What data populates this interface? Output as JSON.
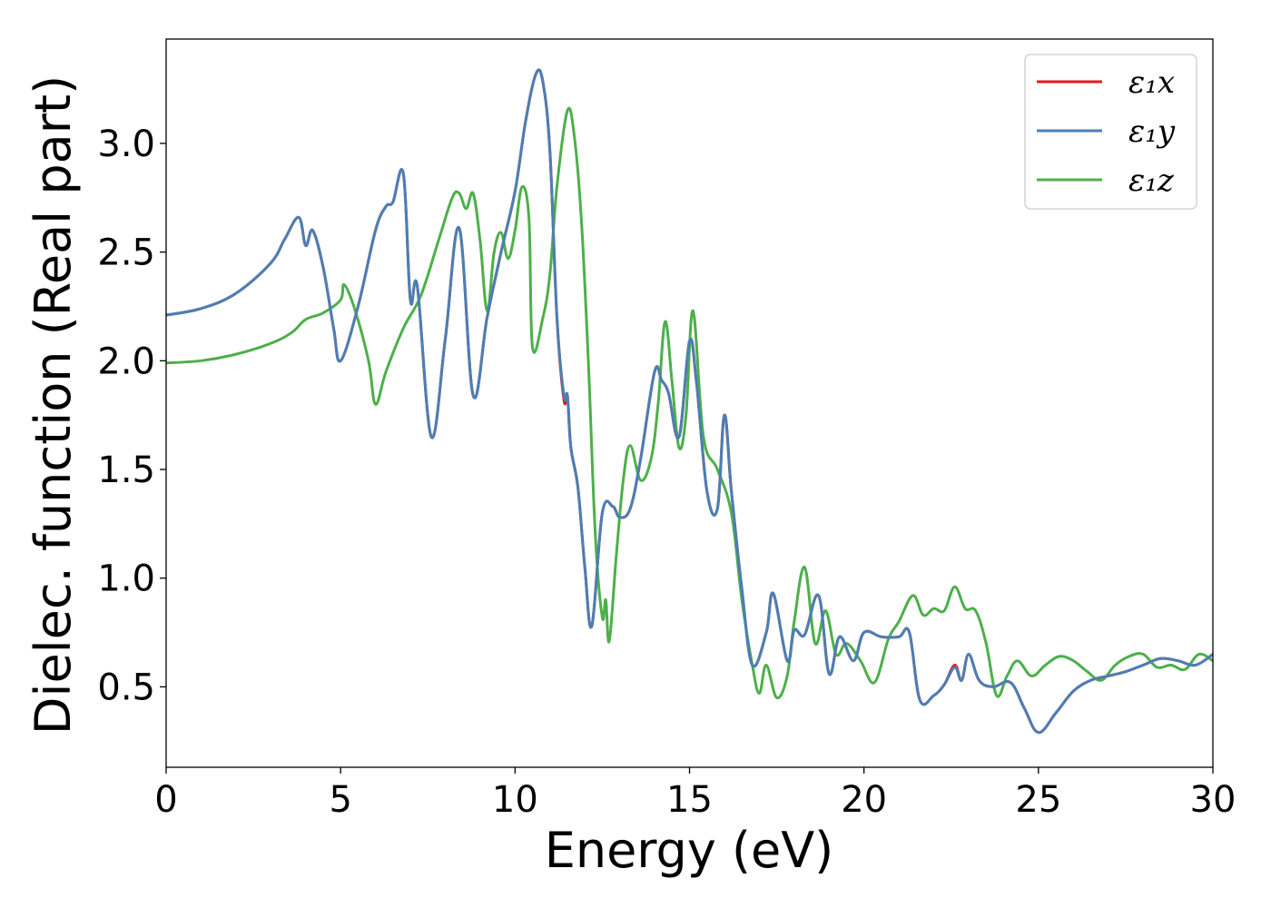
{
  "chart_data": {
    "type": "line",
    "xlabel": "Energy (eV)",
    "ylabel": "Dielec. function (Real part)",
    "xlim": [
      0,
      30
    ],
    "ylim": [
      0.13,
      3.48
    ],
    "xticks": [
      0,
      5,
      10,
      15,
      20,
      25,
      30
    ],
    "xtick_labels": [
      "0",
      "5",
      "10",
      "15",
      "20",
      "25",
      "30"
    ],
    "yticks": [
      0.5,
      1.0,
      1.5,
      2.0,
      2.5,
      3.0
    ],
    "ytick_labels": [
      "0.5",
      "1.0",
      "1.5",
      "2.0",
      "2.5",
      "3.0"
    ],
    "grid": false,
    "legend_position": "top-right",
    "series": [
      {
        "name": "ε₁x",
        "color": "#e41a1c",
        "x": [
          0,
          1,
          2,
          3,
          3.4,
          3.8,
          4.0,
          4.2,
          4.5,
          4.8,
          5.0,
          5.5,
          6.0,
          6.3,
          6.5,
          6.8,
          7.0,
          7.2,
          7.6,
          8.0,
          8.4,
          8.8,
          9.2,
          9.6,
          10.0,
          10.3,
          10.6,
          10.8,
          11.0,
          11.2,
          11.4,
          11.5,
          11.6,
          11.8,
          12.0,
          12.2,
          12.5,
          12.8,
          13.0,
          13.3,
          13.6,
          14.0,
          14.2,
          14.4,
          14.7,
          15.0,
          15.2,
          15.5,
          15.8,
          16.0,
          16.2,
          16.5,
          16.8,
          17.2,
          17.4,
          17.8,
          18.0,
          18.3,
          18.7,
          19.0,
          19.3,
          19.7,
          20.0,
          20.5,
          21.0,
          21.3,
          21.6,
          22.0,
          22.3,
          22.6,
          22.8,
          23.0,
          23.3,
          23.7,
          24.2,
          24.6,
          25.0,
          25.5,
          26.0,
          26.5,
          27.0,
          27.5,
          28.0,
          28.5,
          29.0,
          29.5,
          30.0
        ],
        "y": [
          2.21,
          2.24,
          2.31,
          2.45,
          2.56,
          2.66,
          2.53,
          2.6,
          2.43,
          2.15,
          2.0,
          2.25,
          2.6,
          2.71,
          2.73,
          2.86,
          2.28,
          2.34,
          1.65,
          2.1,
          2.61,
          1.84,
          2.2,
          2.5,
          2.78,
          3.1,
          3.32,
          3.28,
          2.96,
          2.2,
          1.82,
          1.84,
          1.6,
          1.42,
          1.05,
          0.78,
          1.3,
          1.33,
          1.28,
          1.32,
          1.55,
          1.95,
          1.91,
          1.85,
          1.65,
          2.09,
          1.9,
          1.4,
          1.32,
          1.75,
          1.4,
          0.95,
          0.6,
          0.75,
          0.93,
          0.62,
          0.76,
          0.74,
          0.92,
          0.56,
          0.73,
          0.62,
          0.75,
          0.73,
          0.73,
          0.75,
          0.44,
          0.46,
          0.51,
          0.6,
          0.53,
          0.65,
          0.53,
          0.5,
          0.52,
          0.4,
          0.29,
          0.38,
          0.48,
          0.53,
          0.55,
          0.57,
          0.6,
          0.63,
          0.62,
          0.6,
          0.65
        ]
      },
      {
        "name": "ε₁y",
        "color": "#4a7fb5",
        "x": [
          0,
          1,
          2,
          3,
          3.4,
          3.8,
          4.0,
          4.2,
          4.5,
          4.8,
          5.0,
          5.5,
          6.0,
          6.3,
          6.5,
          6.8,
          7.0,
          7.2,
          7.6,
          8.0,
          8.4,
          8.8,
          9.2,
          9.6,
          10.0,
          10.3,
          10.6,
          10.8,
          11.0,
          11.2,
          11.4,
          11.5,
          11.6,
          11.8,
          12.0,
          12.2,
          12.5,
          12.8,
          13.0,
          13.3,
          13.6,
          14.0,
          14.2,
          14.4,
          14.7,
          15.0,
          15.2,
          15.5,
          15.8,
          16.0,
          16.2,
          16.5,
          16.8,
          17.2,
          17.4,
          17.8,
          18.0,
          18.3,
          18.7,
          19.0,
          19.3,
          19.7,
          20.0,
          20.5,
          21.0,
          21.3,
          21.6,
          22.0,
          22.3,
          22.6,
          22.8,
          23.0,
          23.3,
          23.7,
          24.2,
          24.6,
          25.0,
          25.5,
          26.0,
          26.5,
          27.0,
          27.5,
          28.0,
          28.5,
          29.0,
          29.5,
          30.0
        ],
        "y": [
          2.21,
          2.24,
          2.31,
          2.45,
          2.56,
          2.66,
          2.53,
          2.6,
          2.43,
          2.15,
          2.0,
          2.25,
          2.6,
          2.71,
          2.73,
          2.86,
          2.28,
          2.34,
          1.65,
          2.1,
          2.61,
          1.84,
          2.2,
          2.5,
          2.78,
          3.1,
          3.32,
          3.28,
          2.96,
          2.2,
          1.84,
          1.84,
          1.6,
          1.42,
          1.05,
          0.78,
          1.3,
          1.33,
          1.28,
          1.32,
          1.55,
          1.95,
          1.91,
          1.85,
          1.65,
          2.09,
          1.9,
          1.4,
          1.32,
          1.75,
          1.4,
          0.95,
          0.6,
          0.75,
          0.93,
          0.62,
          0.76,
          0.74,
          0.92,
          0.56,
          0.73,
          0.62,
          0.75,
          0.73,
          0.73,
          0.75,
          0.44,
          0.46,
          0.51,
          0.59,
          0.53,
          0.65,
          0.53,
          0.5,
          0.52,
          0.4,
          0.29,
          0.38,
          0.48,
          0.53,
          0.55,
          0.57,
          0.6,
          0.63,
          0.62,
          0.6,
          0.65
        ]
      },
      {
        "name": "ε₁z",
        "color": "#4daf4a",
        "x": [
          0,
          1,
          2,
          3,
          3.6,
          4.0,
          4.5,
          5.0,
          5.1,
          5.4,
          5.8,
          6.0,
          6.3,
          6.8,
          7.3,
          7.8,
          8.2,
          8.4,
          8.6,
          8.8,
          9.0,
          9.2,
          9.4,
          9.6,
          9.8,
          10.0,
          10.2,
          10.4,
          10.5,
          10.8,
          11.0,
          11.2,
          11.5,
          11.7,
          11.9,
          12.1,
          12.3,
          12.5,
          12.6,
          12.7,
          12.9,
          13.1,
          13.3,
          13.6,
          13.9,
          14.1,
          14.3,
          14.5,
          14.7,
          14.9,
          15.1,
          15.4,
          15.8,
          16.2,
          16.5,
          16.8,
          17.0,
          17.2,
          17.5,
          17.8,
          18.0,
          18.3,
          18.6,
          18.9,
          19.2,
          19.5,
          19.9,
          20.3,
          20.7,
          21.0,
          21.4,
          21.7,
          22.0,
          22.3,
          22.6,
          22.9,
          23.2,
          23.5,
          23.8,
          24.1,
          24.4,
          24.8,
          25.2,
          25.6,
          26.0,
          26.4,
          26.8,
          27.2,
          27.6,
          28.0,
          28.4,
          28.8,
          29.2,
          29.6,
          30.0
        ],
        "y": [
          1.99,
          2.0,
          2.03,
          2.08,
          2.13,
          2.19,
          2.22,
          2.28,
          2.35,
          2.24,
          2.0,
          1.8,
          1.95,
          2.15,
          2.3,
          2.55,
          2.75,
          2.77,
          2.7,
          2.77,
          2.55,
          2.23,
          2.5,
          2.59,
          2.47,
          2.6,
          2.8,
          2.65,
          2.06,
          2.2,
          2.4,
          2.8,
          3.15,
          3.03,
          2.65,
          2.0,
          1.2,
          0.82,
          0.9,
          0.71,
          1.1,
          1.45,
          1.61,
          1.45,
          1.55,
          1.8,
          2.18,
          1.9,
          1.6,
          1.75,
          2.23,
          1.65,
          1.5,
          1.3,
          0.9,
          0.6,
          0.47,
          0.6,
          0.45,
          0.55,
          0.8,
          1.05,
          0.7,
          0.85,
          0.65,
          0.7,
          0.62,
          0.52,
          0.72,
          0.8,
          0.92,
          0.83,
          0.86,
          0.85,
          0.96,
          0.86,
          0.85,
          0.7,
          0.46,
          0.55,
          0.62,
          0.55,
          0.6,
          0.64,
          0.62,
          0.57,
          0.53,
          0.6,
          0.64,
          0.65,
          0.59,
          0.6,
          0.58,
          0.65,
          0.62
        ]
      }
    ]
  }
}
